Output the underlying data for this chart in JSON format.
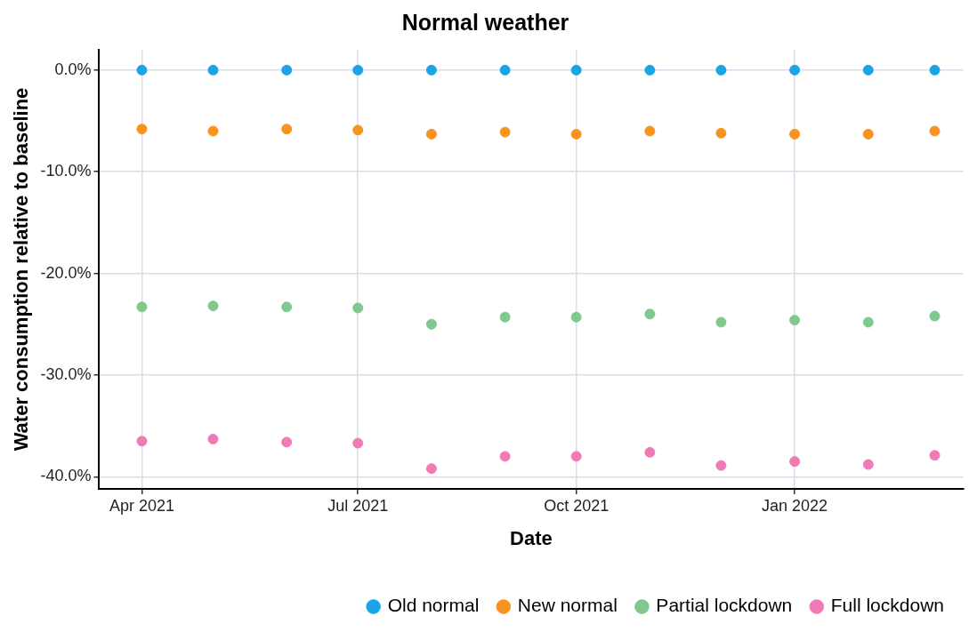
{
  "chart_data": {
    "type": "scatter",
    "title": "Normal weather",
    "xlabel": "Date",
    "ylabel": "Water consumption relative to baseline",
    "x": [
      "2021-04-01",
      "2021-05-01",
      "2021-06-01",
      "2021-07-01",
      "2021-08-01",
      "2021-09-01",
      "2021-10-01",
      "2021-11-01",
      "2021-12-01",
      "2022-01-01",
      "2022-02-01",
      "2022-03-01"
    ],
    "series": [
      {
        "name": "Old normal",
        "color": "#1ba3e8",
        "values": [
          0,
          0,
          0,
          0,
          0,
          0,
          0,
          0,
          0,
          0,
          0,
          0
        ]
      },
      {
        "name": "New normal",
        "color": "#f8931f",
        "values": [
          -5.8,
          -6.0,
          -5.8,
          -5.9,
          -6.3,
          -6.1,
          -6.3,
          -6.0,
          -6.2,
          -6.3,
          -6.3,
          -6.0
        ]
      },
      {
        "name": "Partial lockdown",
        "color": "#7fc88f",
        "values": [
          -23.3,
          -23.2,
          -23.3,
          -23.4,
          -25.0,
          -24.3,
          -24.3,
          -24.0,
          -24.8,
          -24.6,
          -24.8,
          -24.2
        ]
      },
      {
        "name": "Full lockdown",
        "color": "#f07ab5",
        "values": [
          -36.5,
          -36.3,
          -36.6,
          -36.7,
          -39.2,
          -38.0,
          -38.0,
          -37.6,
          -38.9,
          -38.5,
          -38.8,
          -37.9
        ]
      }
    ],
    "xlim": [
      "2021-03-14",
      "2022-03-13"
    ],
    "xticks": [
      {
        "value": "2021-04-01",
        "label": "Apr 2021"
      },
      {
        "value": "2021-07-01",
        "label": "Jul 2021"
      },
      {
        "value": "2021-10-01",
        "label": "Oct 2021"
      },
      {
        "value": "2022-01-01",
        "label": "Jan 2022"
      }
    ],
    "ylim": [
      -41.2,
      2.0
    ],
    "yticks": [
      {
        "value": 0,
        "label": "0.0%"
      },
      {
        "value": -10,
        "label": "-10.0%"
      },
      {
        "value": -20,
        "label": "-20.0%"
      },
      {
        "value": -30,
        "label": "-30.0%"
      },
      {
        "value": -40,
        "label": "-40.0%"
      }
    ],
    "grid": true,
    "legend": "bottom",
    "marker": "circle"
  }
}
